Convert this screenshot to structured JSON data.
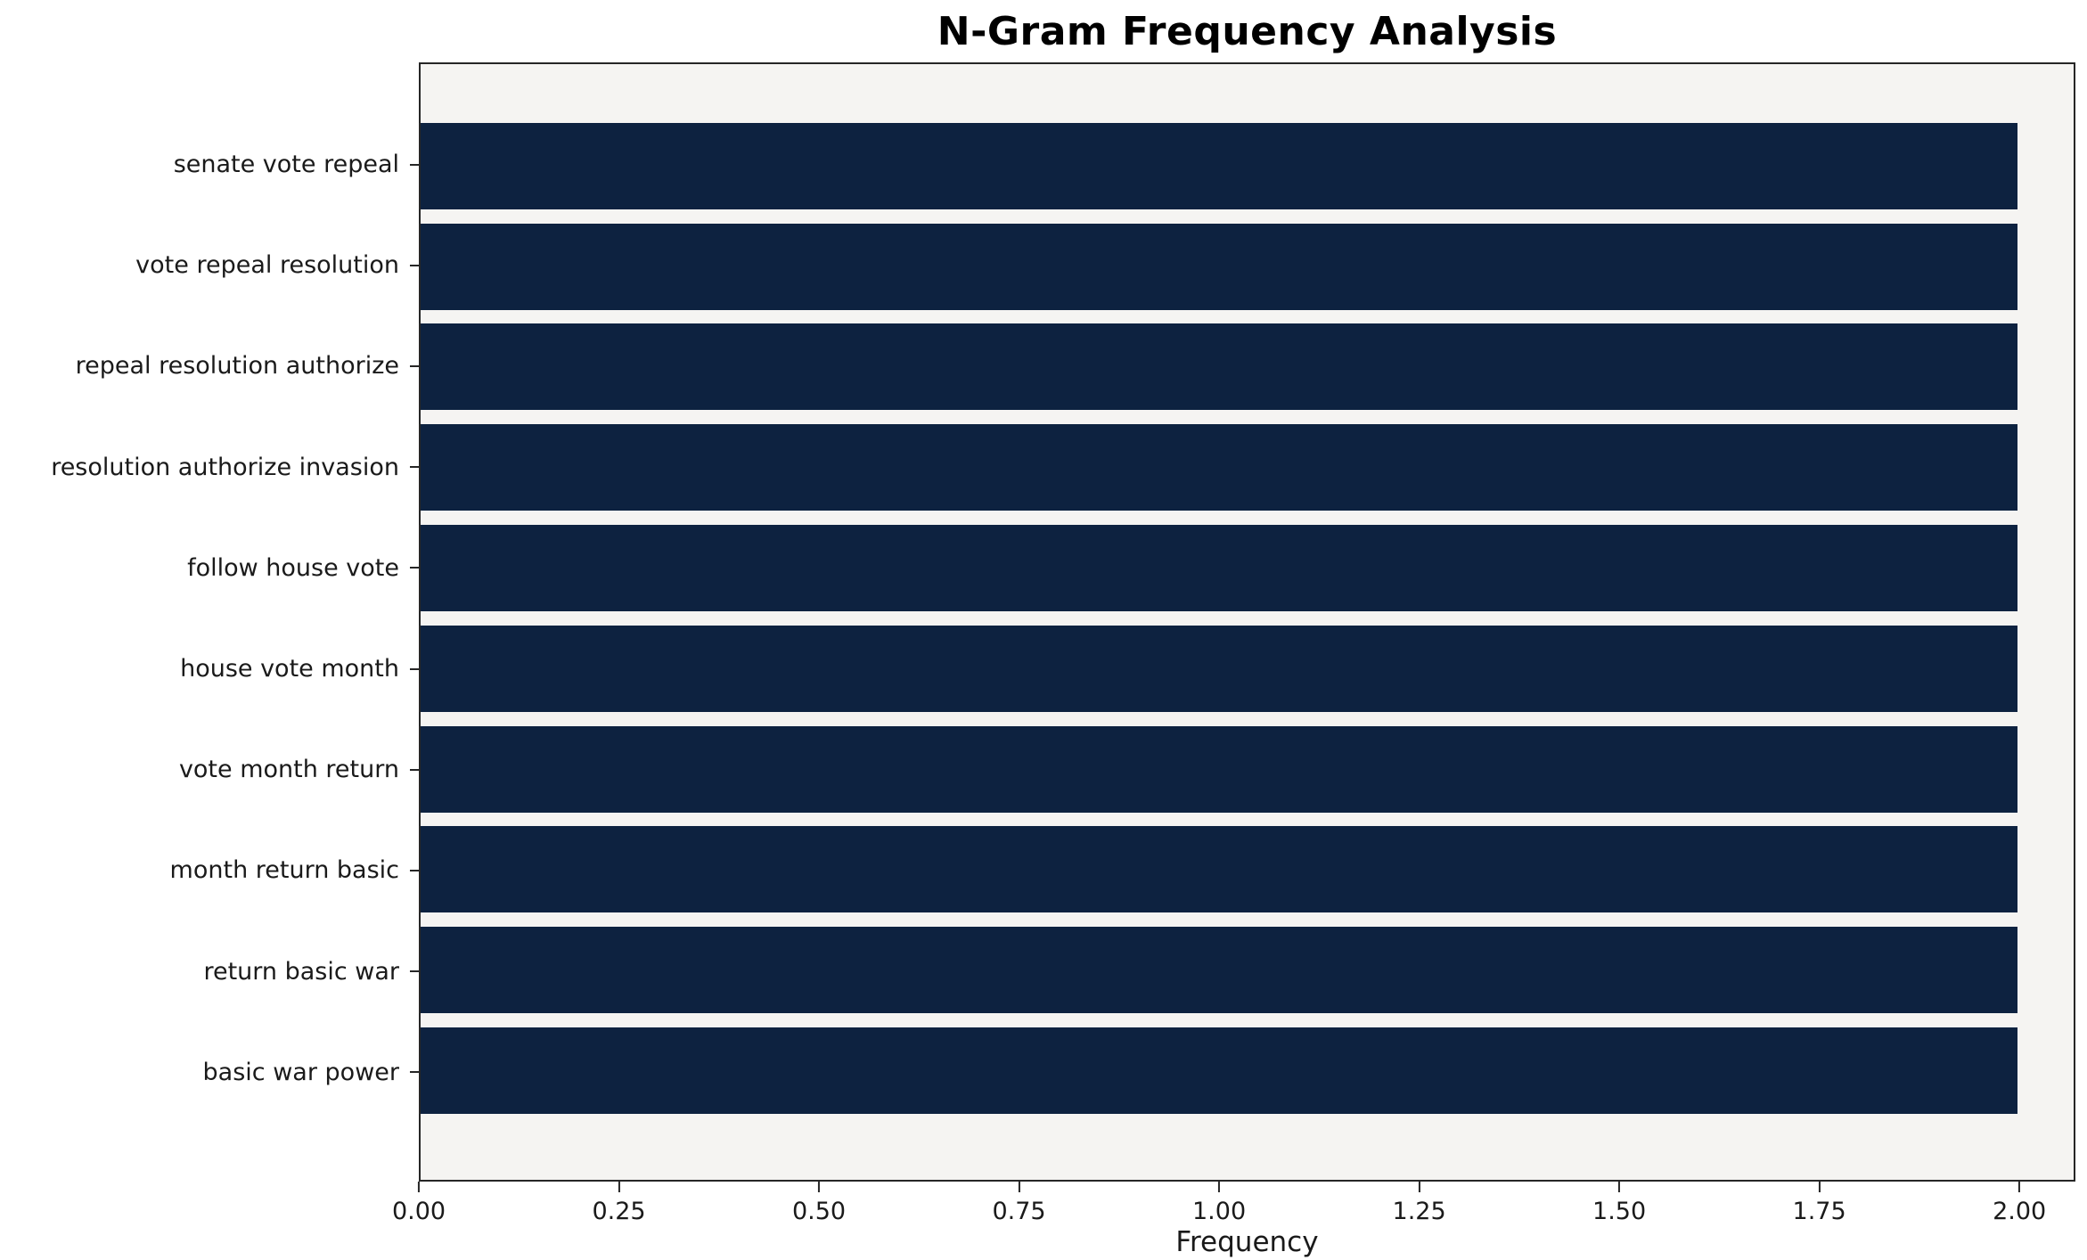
{
  "chart_data": {
    "type": "bar",
    "orientation": "horizontal",
    "title": "N-Gram Frequency Analysis",
    "xlabel": "Frequency",
    "ylabel": "",
    "categories": [
      "senate vote repeal",
      "vote repeal resolution",
      "repeal resolution authorize",
      "resolution authorize invasion",
      "follow house vote",
      "house vote month",
      "vote month return",
      "month return basic",
      "return basic war",
      "basic war power"
    ],
    "values": [
      2,
      2,
      2,
      2,
      2,
      2,
      2,
      2,
      2,
      2
    ],
    "xlim": [
      0,
      2.07
    ],
    "xticks": [
      0.0,
      0.25,
      0.5,
      0.75,
      1.0,
      1.25,
      1.5,
      1.75,
      2.0
    ],
    "xtick_labels": [
      "0.00",
      "0.25",
      "0.50",
      "0.75",
      "1.00",
      "1.25",
      "1.50",
      "1.75",
      "2.00"
    ],
    "grid": false,
    "legend": null,
    "colors": {
      "bar": "#0d2240",
      "plot_background": "#f5f4f2",
      "figure_background": "#ffffff",
      "axis": "#262626",
      "text": "#1a1a1a"
    }
  }
}
